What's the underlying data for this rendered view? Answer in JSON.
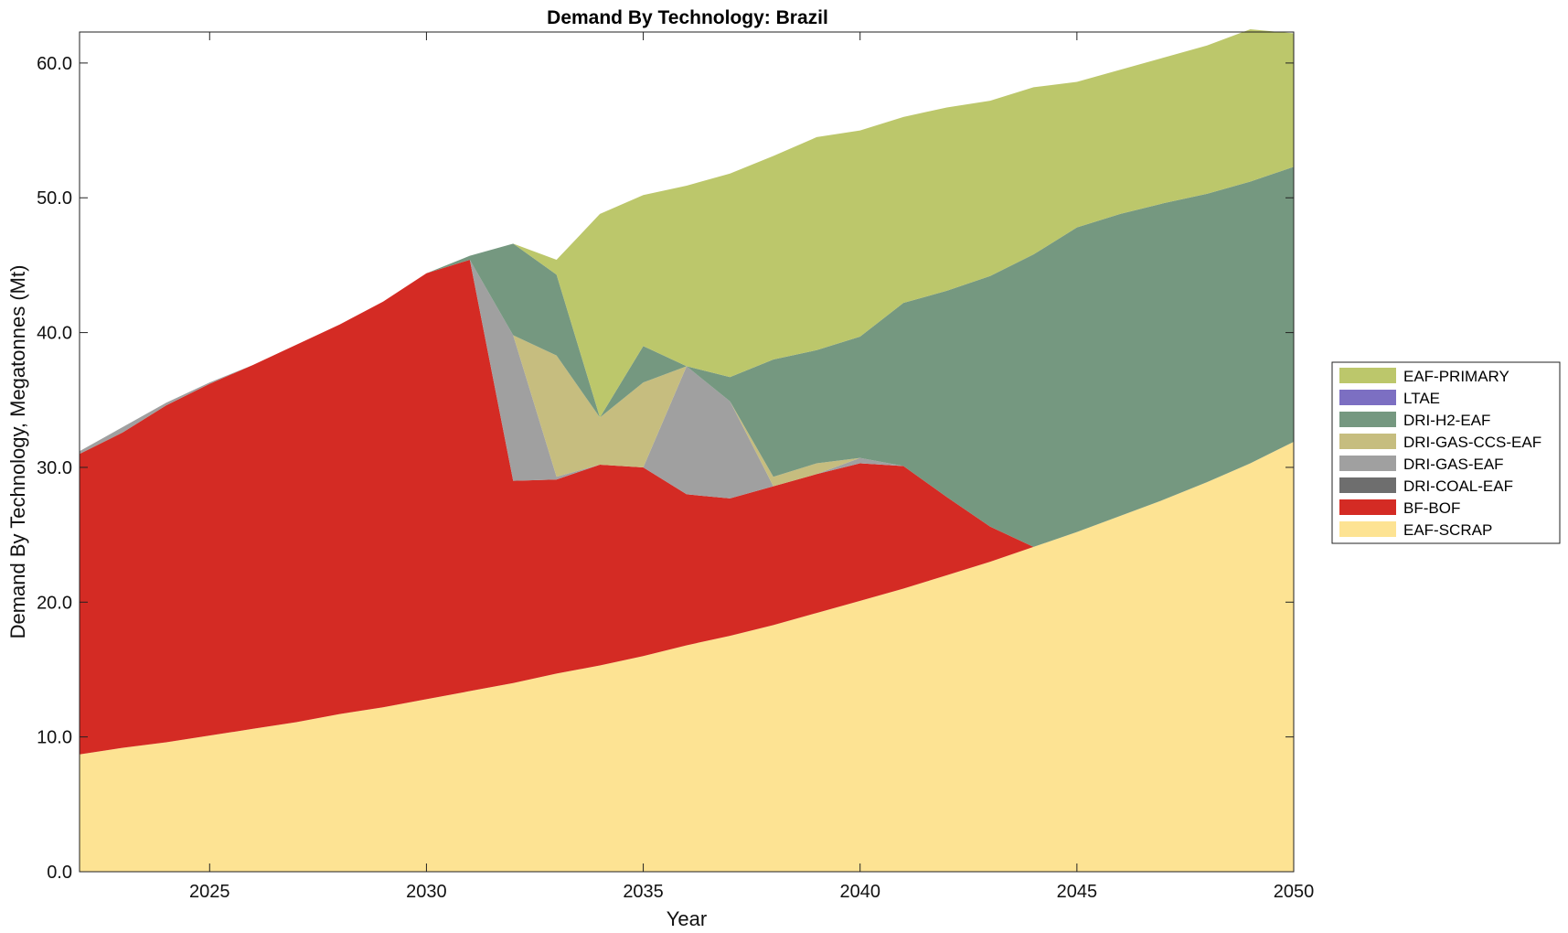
{
  "chart_data": {
    "type": "area",
    "stacked": true,
    "title": "Demand By Technology: Brazil",
    "xlabel": "Year",
    "ylabel": "Demand By Technology, Megatonnes (Mt)",
    "xlim": [
      2022,
      2050
    ],
    "ylim": [
      0,
      62.3
    ],
    "xticks": [
      2025,
      2030,
      2035,
      2040,
      2045,
      2050
    ],
    "yticks": [
      0,
      10,
      20,
      30,
      40,
      50,
      60
    ],
    "ytick_labels": [
      "0.0",
      "10.0",
      "20.0",
      "30.0",
      "40.0",
      "50.0",
      "60.0"
    ],
    "grid": false,
    "legend_position": "right",
    "x": [
      2022,
      2023,
      2024,
      2025,
      2026,
      2027,
      2028,
      2029,
      2030,
      2031,
      2032,
      2033,
      2034,
      2035,
      2036,
      2037,
      2038,
      2039,
      2040,
      2041,
      2042,
      2043,
      2044,
      2045,
      2046,
      2047,
      2048,
      2049,
      2050
    ],
    "series": [
      {
        "name": "EAF-SCRAP",
        "color": "#FDE393",
        "values": [
          8.7,
          9.2,
          9.6,
          10.1,
          10.6,
          11.1,
          11.7,
          12.2,
          12.8,
          13.4,
          14.0,
          14.7,
          15.3,
          16.0,
          16.8,
          17.5,
          18.3,
          19.2,
          20.1,
          21.0,
          22.0,
          23.0,
          24.1,
          25.2,
          26.4,
          27.6,
          28.9,
          30.3,
          31.9
        ]
      },
      {
        "name": "BF-BOF",
        "color": "#D42B24",
        "values": [
          22.3,
          23.4,
          25.0,
          26.1,
          27.0,
          28.0,
          28.9,
          30.1,
          31.6,
          32.0,
          15.0,
          14.4,
          14.9,
          14.0,
          11.2,
          10.2,
          10.3,
          10.3,
          10.2,
          9.1,
          5.8,
          2.6,
          0.0,
          0.0,
          0.0,
          0.0,
          0.0,
          0.0,
          0.0
        ]
      },
      {
        "name": "DRI-COAL-EAF",
        "color": "#6E6E6E",
        "values": [
          0,
          0,
          0,
          0,
          0,
          0,
          0,
          0,
          0,
          0,
          0,
          0,
          0,
          0,
          0,
          0,
          0,
          0,
          0,
          0,
          0,
          0,
          0,
          0,
          0,
          0,
          0,
          0,
          0
        ]
      },
      {
        "name": "DRI-GAS-EAF",
        "color": "#A0A0A0",
        "values": [
          0.2,
          0.4,
          0.2,
          0.1,
          0.0,
          0.0,
          0.0,
          0.0,
          0.0,
          0.0,
          10.8,
          0.2,
          0.0,
          0.0,
          9.5,
          7.2,
          0.0,
          0.0,
          0.4,
          0.0,
          0.0,
          0.0,
          0.0,
          0.0,
          0.0,
          0.0,
          0.0,
          0.0,
          0.0
        ]
      },
      {
        "name": "DRI-GAS-CCS-EAF",
        "color": "#C6BD7F",
        "values": [
          0,
          0,
          0,
          0,
          0,
          0,
          0,
          0,
          0,
          0,
          0.0,
          9.0,
          3.5,
          6.3,
          0.0,
          0.0,
          0.7,
          0.8,
          0.0,
          0.0,
          0.0,
          0.0,
          0.0,
          0.0,
          0.0,
          0.0,
          0.0,
          0.0,
          0.0
        ]
      },
      {
        "name": "DRI-H2-EAF",
        "color": "#759880",
        "values": [
          0,
          0,
          0,
          0,
          0,
          0,
          0,
          0,
          0,
          0.3,
          6.8,
          6.0,
          0.0,
          2.7,
          0.0,
          1.8,
          8.7,
          8.4,
          9.0,
          12.1,
          15.3,
          18.6,
          21.7,
          22.6,
          22.4,
          22.0,
          21.4,
          20.9,
          20.4
        ]
      },
      {
        "name": "LTAE",
        "color": "#7C6FC2",
        "values": [
          0,
          0,
          0,
          0,
          0,
          0,
          0,
          0,
          0,
          0,
          0,
          0,
          0,
          0,
          0,
          0,
          0,
          0,
          0,
          0,
          0,
          0,
          0,
          0,
          0,
          0,
          0,
          0,
          0
        ]
      },
      {
        "name": "EAF-PRIMARY",
        "color": "#BCC76B",
        "values": [
          0,
          0,
          0,
          0,
          0,
          0,
          0,
          0,
          0,
          0,
          0,
          1.1,
          15.1,
          11.2,
          13.4,
          15.1,
          15.1,
          15.8,
          15.3,
          13.8,
          13.6,
          13.0,
          12.4,
          10.8,
          10.7,
          10.8,
          11.0,
          11.3,
          9.9
        ]
      }
    ]
  }
}
